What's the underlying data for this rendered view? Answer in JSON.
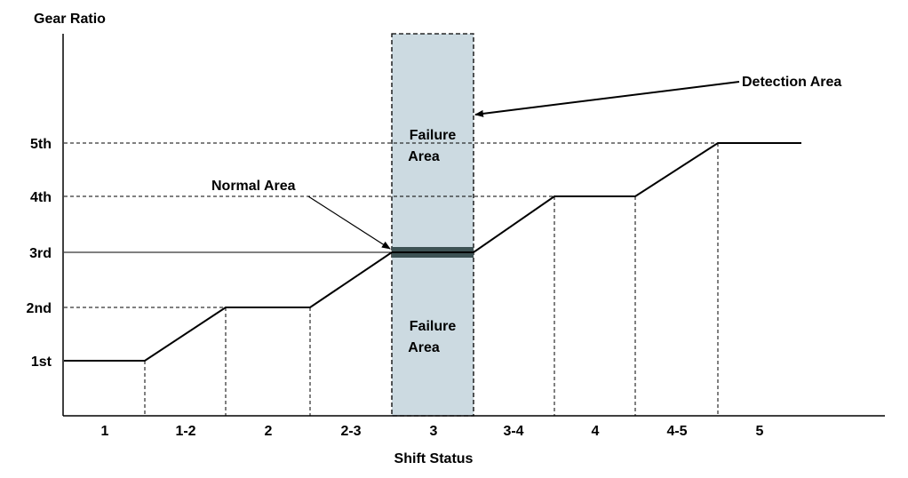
{
  "diagram": {
    "y_axis_title": "Gear Ratio",
    "x_axis_title": "Shift Status",
    "gears": [
      "1st",
      "2nd",
      "3rd",
      "4th",
      "5th"
    ],
    "shift_states": [
      "1",
      "1-2",
      "2",
      "2-3",
      "3",
      "3-4",
      "4",
      "4-5",
      "5"
    ],
    "profile": [
      {
        "shift": "1",
        "gear": "1st"
      },
      {
        "shift": "1-2",
        "gear": "1st → 2nd"
      },
      {
        "shift": "2",
        "gear": "2nd"
      },
      {
        "shift": "2-3",
        "gear": "2nd → 3rd"
      },
      {
        "shift": "3",
        "gear": "3rd"
      },
      {
        "shift": "3-4",
        "gear": "3rd → 4th"
      },
      {
        "shift": "4",
        "gear": "4th"
      },
      {
        "shift": "4-5",
        "gear": "4th → 5th"
      },
      {
        "shift": "5",
        "gear": "5th"
      }
    ],
    "detection_label": "Detection Area",
    "normal_label": "Normal Area",
    "failure_upper_line1": "Failure",
    "failure_upper_line2": "Area",
    "failure_lower_line1": "Failure",
    "failure_lower_line2": "Area",
    "colors": {
      "detection_fill": "#ccdae1",
      "normal_band": "#3d5254",
      "line": "#000000"
    }
  }
}
